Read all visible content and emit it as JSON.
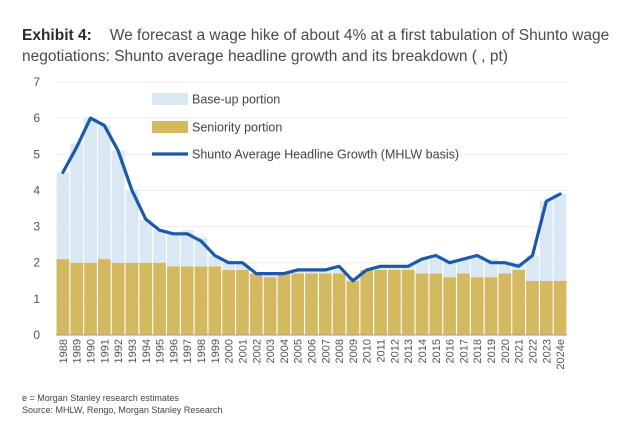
{
  "header": {
    "exhibit_label": "Exhibit 4:",
    "title": "We forecast a wage hike of about 4% at a first tabulation of Shunto wage negotiations: Shunto average headline growth and its breakdown ( , pt)"
  },
  "chart_data": {
    "type": "bar",
    "stacked": true,
    "categories": [
      "1988",
      "1989",
      "1990",
      "1991",
      "1992",
      "1993",
      "1994",
      "1995",
      "1996",
      "1997",
      "1998",
      "1999",
      "2000",
      "2001",
      "2002",
      "2003",
      "2004",
      "2005",
      "2006",
      "2007",
      "2008",
      "2009",
      "2010",
      "2011",
      "2012",
      "2013",
      "2014",
      "2015",
      "2016",
      "2017",
      "2018",
      "2019",
      "2020",
      "2021",
      "2022",
      "2023",
      "2024e"
    ],
    "series": [
      {
        "name": "Seniority portion",
        "color": "#d4b961",
        "values": [
          2.1,
          2.0,
          2.0,
          2.1,
          2.0,
          2.0,
          2.0,
          2.0,
          1.9,
          1.9,
          1.9,
          1.9,
          1.8,
          1.8,
          1.7,
          1.6,
          1.7,
          1.7,
          1.7,
          1.7,
          1.7,
          1.5,
          1.8,
          1.8,
          1.8,
          1.8,
          1.7,
          1.7,
          1.6,
          1.7,
          1.6,
          1.6,
          1.7,
          1.8,
          1.5,
          1.5,
          1.5
        ]
      },
      {
        "name": "Base-up portion",
        "color": "#d9e8f3",
        "values": [
          2.4,
          3.3,
          4.0,
          3.7,
          3.1,
          2.0,
          1.2,
          0.9,
          0.9,
          1.0,
          0.8,
          0.3,
          0.2,
          0.2,
          0.0,
          0.1,
          0.0,
          0.1,
          0.1,
          0.1,
          0.1,
          0.1,
          0.0,
          0.1,
          0.1,
          0.1,
          0.4,
          0.5,
          0.4,
          0.4,
          0.6,
          0.5,
          0.3,
          0.2,
          0.7,
          2.2,
          2.4
        ]
      }
    ],
    "line": {
      "name": "Shunto Average Headline Growth (MHLW basis)",
      "color": "#1b5aa8",
      "values": [
        4.5,
        5.2,
        6.0,
        5.8,
        5.1,
        4.0,
        3.2,
        2.9,
        2.8,
        2.8,
        2.6,
        2.2,
        2.0,
        2.0,
        1.7,
        1.7,
        1.7,
        1.8,
        1.8,
        1.8,
        1.9,
        1.5,
        1.8,
        1.9,
        1.9,
        1.9,
        2.1,
        2.2,
        2.0,
        2.1,
        2.2,
        2.0,
        2.0,
        1.9,
        2.2,
        3.7,
        3.9
      ]
    },
    "legend": [
      "Base-up portion",
      "Seniority portion",
      "Shunto Average Headline Growth (MHLW basis)"
    ],
    "yticks": [
      "0",
      "1",
      "2",
      "3",
      "4",
      "5",
      "6",
      "7"
    ],
    "ylim": [
      0,
      7
    ],
    "xlabel": "",
    "ylabel": ""
  },
  "footer": {
    "note": "e = Morgan Stanley research estimates",
    "source": "Source: MHLW, Rengo, Morgan Stanley Research"
  }
}
